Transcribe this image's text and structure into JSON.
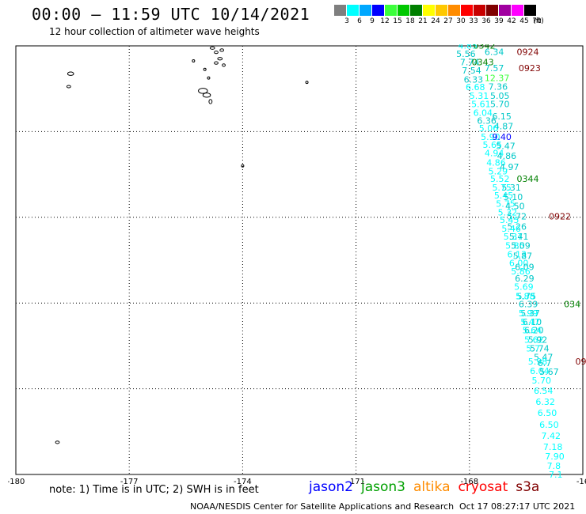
{
  "header": {
    "title": "00:00 – 11:59 UTC 10/14/2021",
    "subtitle": "12 hour collection of altimeter wave heights"
  },
  "legend": {
    "unit": "(ft)",
    "bins": [
      {
        "label": "3",
        "color": "#7f7f7f"
      },
      {
        "label": "6",
        "color": "#00ffff"
      },
      {
        "label": "9",
        "color": "#00a8ff"
      },
      {
        "label": "12",
        "color": "#0000ff"
      },
      {
        "label": "15",
        "color": "#3cff3c"
      },
      {
        "label": "18",
        "color": "#00c800"
      },
      {
        "label": "21",
        "color": "#008000"
      },
      {
        "label": "24",
        "color": "#ffff00"
      },
      {
        "label": "27",
        "color": "#ffc800"
      },
      {
        "label": "30",
        "color": "#ff8c00"
      },
      {
        "label": "33",
        "color": "#ff0000"
      },
      {
        "label": "36",
        "color": "#c80000"
      },
      {
        "label": "39",
        "color": "#800000"
      },
      {
        "label": "42",
        "color": "#a000a0"
      },
      {
        "label": "45",
        "color": "#ff00ff"
      },
      {
        "label": "70",
        "color": "#000000"
      }
    ]
  },
  "map": {
    "lon_range": [
      -180,
      -165
    ],
    "lat_range": [
      -30,
      -20
    ],
    "lat_ticks": [
      "-20",
      "-22",
      "-24",
      "-26",
      "-28",
      "-30"
    ],
    "lon_ticks": [
      {
        "lon": -180,
        "label": "-180"
      },
      {
        "lon": -177,
        "label": "-177"
      },
      {
        "lon": -174,
        "label": "-174"
      },
      {
        "lon": -171,
        "label": "-171"
      },
      {
        "lon": -168,
        "label": "-168"
      },
      {
        "lon": -165,
        "label": "-16"
      }
    ],
    "grid_lines": "dotted"
  },
  "observations": [
    {
      "text": "4.85",
      "lon": -168.3,
      "lat": -19.99,
      "color": "#00ffff"
    },
    {
      "text": "0342",
      "lon": -167.9,
      "lat": -19.99,
      "color": "#008000"
    },
    {
      "text": "6.34",
      "lon": -167.6,
      "lat": -20.14,
      "color": "#00c8c8"
    },
    {
      "text": "0924",
      "lon": -166.75,
      "lat": -20.14,
      "color": "#800000"
    },
    {
      "text": "5.56",
      "lon": -168.35,
      "lat": -20.18,
      "color": "#00c8c8"
    },
    {
      "text": "7.74",
      "lon": -168.25,
      "lat": -20.38,
      "color": "#00c8c8"
    },
    {
      "text": "0343",
      "lon": -167.94,
      "lat": -20.38,
      "color": "#008000"
    },
    {
      "text": "7.57",
      "lon": -167.6,
      "lat": -20.52,
      "color": "#00c8c8"
    },
    {
      "text": "0923",
      "lon": -166.7,
      "lat": -20.52,
      "color": "#800000"
    },
    {
      "text": "7.54",
      "lon": -168.2,
      "lat": -20.57,
      "color": "#00c8c8"
    },
    {
      "text": "12.37",
      "lon": -167.6,
      "lat": -20.75,
      "color": "#3cff3c"
    },
    {
      "text": "6.33",
      "lon": -168.15,
      "lat": -20.78,
      "color": "#00c8c8"
    },
    {
      "text": "7.36",
      "lon": -167.5,
      "lat": -20.95,
      "color": "#00c8c8"
    },
    {
      "text": "6.68",
      "lon": -168.1,
      "lat": -20.96,
      "color": "#00ffff"
    },
    {
      "text": "5.31",
      "lon": -168.0,
      "lat": -21.16,
      "color": "#00ffff"
    },
    {
      "text": "5.05",
      "lon": -167.45,
      "lat": -21.16,
      "color": "#00c8c8"
    },
    {
      "text": "5.61",
      "lon": -167.95,
      "lat": -21.36,
      "color": "#00ffff"
    },
    {
      "text": "5.70",
      "lon": -167.45,
      "lat": -21.36,
      "color": "#00c8c8"
    },
    {
      "text": "6.04",
      "lon": -167.9,
      "lat": -21.56,
      "color": "#00ffff"
    },
    {
      "text": "6.15",
      "lon": -167.4,
      "lat": -21.64,
      "color": "#00c8c8"
    },
    {
      "text": "6.36",
      "lon": -167.8,
      "lat": -21.74,
      "color": "#00c8c8"
    },
    {
      "text": "4.87",
      "lon": -167.35,
      "lat": -21.87,
      "color": "#00c8c8"
    },
    {
      "text": "5.06",
      "lon": -167.75,
      "lat": -21.92,
      "color": "#00ffff"
    },
    {
      "text": "5.90",
      "lon": -167.7,
      "lat": -22.12,
      "color": "#00ffff"
    },
    {
      "text": "9.40",
      "lon": -167.4,
      "lat": -22.12,
      "color": "#0000ff"
    },
    {
      "text": "5.65",
      "lon": -167.65,
      "lat": -22.31,
      "color": "#00ffff"
    },
    {
      "text": "5.47",
      "lon": -167.3,
      "lat": -22.33,
      "color": "#00c8c8"
    },
    {
      "text": "4.94",
      "lon": -167.6,
      "lat": -22.5,
      "color": "#00ffff"
    },
    {
      "text": "4.86",
      "lon": -167.27,
      "lat": -22.56,
      "color": "#00c8c8"
    },
    {
      "text": "4.86",
      "lon": -167.55,
      "lat": -22.72,
      "color": "#00ffff"
    },
    {
      "text": "4.97",
      "lon": -167.2,
      "lat": -22.82,
      "color": "#00c8c8"
    },
    {
      "text": "5.29",
      "lon": -167.5,
      "lat": -22.92,
      "color": "#00ffff"
    },
    {
      "text": "5.52",
      "lon": -167.45,
      "lat": -23.1,
      "color": "#00ffff"
    },
    {
      "text": "0344",
      "lon": -166.75,
      "lat": -23.1,
      "color": "#008000"
    },
    {
      "text": "5.31",
      "lon": -167.15,
      "lat": -23.3,
      "color": "#00c8c8"
    },
    {
      "text": "5.75",
      "lon": -167.4,
      "lat": -23.3,
      "color": "#00ffff"
    },
    {
      "text": "5.45",
      "lon": -167.35,
      "lat": -23.49,
      "color": "#00ffff"
    },
    {
      "text": "5.10",
      "lon": -167.1,
      "lat": -23.52,
      "color": "#00c8c8"
    },
    {
      "text": "5.75",
      "lon": -167.3,
      "lat": -23.68,
      "color": "#00ffff"
    },
    {
      "text": "4.50",
      "lon": -167.05,
      "lat": -23.74,
      "color": "#00c8c8"
    },
    {
      "text": "5.32",
      "lon": -167.25,
      "lat": -23.88,
      "color": "#00ffff"
    },
    {
      "text": "5.72",
      "lon": -167.0,
      "lat": -23.98,
      "color": "#00c8c8"
    },
    {
      "text": "0922",
      "lon": -165.9,
      "lat": -23.98,
      "color": "#800000"
    },
    {
      "text": "5.45",
      "lon": -167.2,
      "lat": -24.06,
      "color": "#00ffff"
    },
    {
      "text": "5.26",
      "lon": -167.0,
      "lat": -24.22,
      "color": "#00c8c8"
    },
    {
      "text": "5.46",
      "lon": -167.15,
      "lat": -24.26,
      "color": "#00ffff"
    },
    {
      "text": "5.37",
      "lon": -167.1,
      "lat": -24.45,
      "color": "#00ffff"
    },
    {
      "text": "5.41",
      "lon": -166.95,
      "lat": -24.45,
      "color": "#00c8c8"
    },
    {
      "text": "5.85",
      "lon": -167.05,
      "lat": -24.66,
      "color": "#00ffff"
    },
    {
      "text": "5.09",
      "lon": -166.9,
      "lat": -24.66,
      "color": "#00c8c8"
    },
    {
      "text": "6.13",
      "lon": -167.0,
      "lat": -24.86,
      "color": "#00ffff"
    },
    {
      "text": "5.87",
      "lon": -166.85,
      "lat": -24.9,
      "color": "#00c8c8"
    },
    {
      "text": "6.00",
      "lon": -166.95,
      "lat": -25.06,
      "color": "#00ffff"
    },
    {
      "text": "6.09",
      "lon": -166.8,
      "lat": -25.16,
      "color": "#00c8c8"
    },
    {
      "text": "5.86",
      "lon": -166.9,
      "lat": -25.26,
      "color": "#00ffff"
    },
    {
      "text": "6.29",
      "lon": -166.8,
      "lat": -25.42,
      "color": "#00c8c8"
    },
    {
      "text": "5.69",
      "lon": -166.82,
      "lat": -25.62,
      "color": "#00ffff"
    },
    {
      "text": "5.75",
      "lon": -166.75,
      "lat": -25.84,
      "color": "#00c8c8"
    },
    {
      "text": "5.88",
      "lon": -166.78,
      "lat": -25.84,
      "color": "#00ffff"
    },
    {
      "text": "6.39",
      "lon": -166.7,
      "lat": -26.02,
      "color": "#00c8c8"
    },
    {
      "text": "034",
      "lon": -165.5,
      "lat": -26.02,
      "color": "#008000"
    },
    {
      "text": "5.37",
      "lon": -166.65,
      "lat": -26.24,
      "color": "#00c8c8"
    },
    {
      "text": "5.99",
      "lon": -166.7,
      "lat": -26.24,
      "color": "#00ffff"
    },
    {
      "text": "6.10",
      "lon": -166.6,
      "lat": -26.44,
      "color": "#00c8c8"
    },
    {
      "text": "5.47",
      "lon": -166.65,
      "lat": -26.44,
      "color": "#00ffff"
    },
    {
      "text": "6.20",
      "lon": -166.55,
      "lat": -26.63,
      "color": "#00c8c8"
    },
    {
      "text": "5.64",
      "lon": -166.6,
      "lat": -26.63,
      "color": "#00ffff"
    },
    {
      "text": "5.62",
      "lon": -166.55,
      "lat": -26.85,
      "color": "#00ffff"
    },
    {
      "text": "5.92",
      "lon": -166.45,
      "lat": -26.85,
      "color": "#00c8c8"
    },
    {
      "text": "5.7",
      "lon": -166.5,
      "lat": -27.06,
      "color": "#00ffff"
    },
    {
      "text": "5.74",
      "lon": -166.4,
      "lat": -27.06,
      "color": "#00c8c8"
    },
    {
      "text": "5.47",
      "lon": -166.3,
      "lat": -27.26,
      "color": "#00c8c8"
    },
    {
      "text": "5.98",
      "lon": -166.45,
      "lat": -27.36,
      "color": "#00ffff"
    },
    {
      "text": "6.7",
      "lon": -166.2,
      "lat": -27.4,
      "color": "#00c8c8"
    },
    {
      "text": "09",
      "lon": -165.2,
      "lat": -27.36,
      "color": "#800000"
    },
    {
      "text": "6.04",
      "lon": -166.4,
      "lat": -27.58,
      "color": "#00ffff"
    },
    {
      "text": "5.67",
      "lon": -166.15,
      "lat": -27.6,
      "color": "#00c8c8"
    },
    {
      "text": "5.70",
      "lon": -166.35,
      "lat": -27.8,
      "color": "#00ffff"
    },
    {
      "text": "6.54",
      "lon": -166.3,
      "lat": -28.04,
      "color": "#00ffff"
    },
    {
      "text": "6.32",
      "lon": -166.25,
      "lat": -28.3,
      "color": "#00ffff"
    },
    {
      "text": "6.50",
      "lon": -166.2,
      "lat": -28.56,
      "color": "#00ffff"
    },
    {
      "text": "6.50",
      "lon": -166.15,
      "lat": -28.84,
      "color": "#00ffff"
    },
    {
      "text": "7.42",
      "lon": -166.1,
      "lat": -29.1,
      "color": "#00ffff"
    },
    {
      "text": "7.18",
      "lon": -166.05,
      "lat": -29.35,
      "color": "#00ffff"
    },
    {
      "text": "7.90",
      "lon": -166.0,
      "lat": -29.58,
      "color": "#00ffff"
    },
    {
      "text": "7.8",
      "lon": -165.95,
      "lat": -29.8,
      "color": "#00ffff"
    },
    {
      "text": "7.1",
      "lon": -165.9,
      "lat": -30.0,
      "color": "#00ffff"
    }
  ],
  "footer": {
    "note": "note: 1) Time is in UTC; 2) SWH is in feet",
    "missions": [
      {
        "name": "jason2",
        "color": "#0000ff"
      },
      {
        "name": "jason3",
        "color": "#00a000"
      },
      {
        "name": "altika",
        "color": "#ff8c00"
      },
      {
        "name": "cryosat",
        "color": "#ff0000"
      },
      {
        "name": "s3a",
        "color": "#800000"
      }
    ],
    "credit": "NOAA/NESDIS Center for Satellite Applications and Research",
    "timestamp": "Oct 17 08:27:17 UTC 2021"
  }
}
